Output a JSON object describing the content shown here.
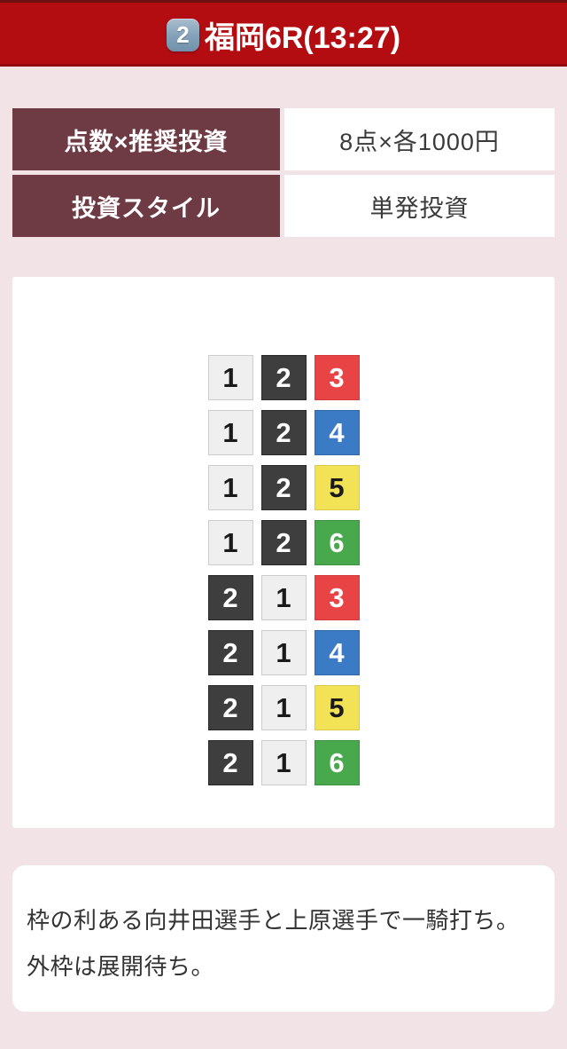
{
  "header": {
    "race_number_badge": "2",
    "title": "福岡6R(13:27)"
  },
  "info_table": {
    "rows": [
      {
        "label": "点数×推奨投資",
        "value": "8点×各1000円"
      },
      {
        "label": "投資スタイル",
        "value": "単発投資"
      }
    ]
  },
  "bets": {
    "rows": [
      [
        "1",
        "2",
        "3"
      ],
      [
        "1",
        "2",
        "4"
      ],
      [
        "1",
        "2",
        "5"
      ],
      [
        "1",
        "2",
        "6"
      ],
      [
        "2",
        "1",
        "3"
      ],
      [
        "2",
        "1",
        "4"
      ],
      [
        "2",
        "1",
        "5"
      ],
      [
        "2",
        "1",
        "6"
      ]
    ],
    "boat_styles": {
      "1": {
        "bg": "#efefef",
        "fg": "#1a1a1a",
        "border": "#cccccc"
      },
      "2": {
        "bg": "#3e3e3e",
        "fg": "#ffffff",
        "border": "#282828"
      },
      "3": {
        "bg": "#e94445",
        "fg": "#ffffff",
        "border": "#d23a3b"
      },
      "4": {
        "bg": "#3b7ac4",
        "fg": "#ffffff",
        "border": "#3168a8"
      },
      "5": {
        "bg": "#f1e256",
        "fg": "#1a1a1a",
        "border": "#d9ca4d"
      },
      "6": {
        "bg": "#48a94c",
        "fg": "#ffffff",
        "border": "#3c9040"
      }
    }
  },
  "comment": {
    "text": "枠の利ある向井田選手と上原選手で一騎打ち。外枠は展開待ち。"
  },
  "colors": {
    "header_red": "#b30d12",
    "table_maroon": "#6e3b44",
    "background_pink": "#f1e3e6",
    "badge_blue": "#82a0b8"
  }
}
